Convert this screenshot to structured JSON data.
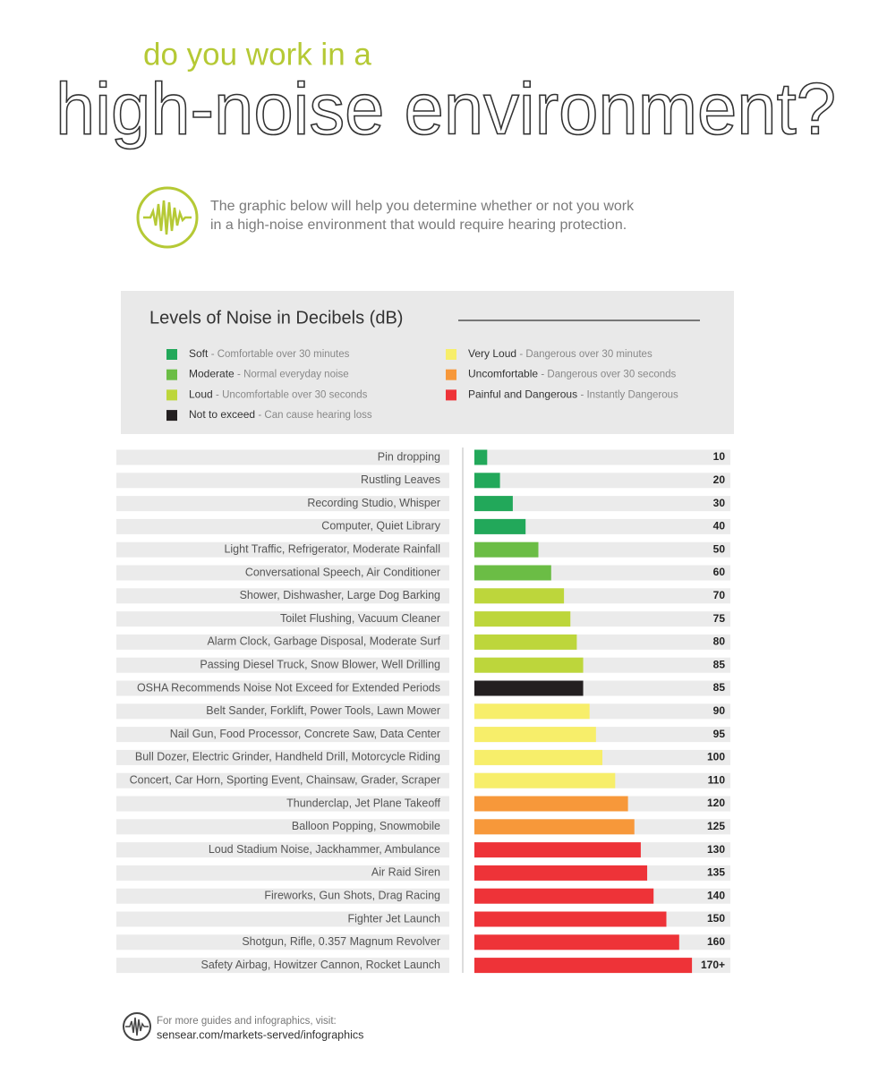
{
  "header": {
    "kicker": "do you work in a",
    "title": "high-noise environment?",
    "intro": [
      "The graphic below will help you determine whether or not you work",
      "in a high-noise environment that would require hearing protection."
    ]
  },
  "chart_data": {
    "type": "hbar",
    "title": "Levels of Noise in Decibels (dB)",
    "legend": [
      {
        "name": "Soft",
        "description": "- Comfortable over 30 minutes",
        "color": "#22a85a"
      },
      {
        "name": "Moderate",
        "description": "- Normal everyday noise",
        "color": "#6bbd45"
      },
      {
        "name": "Loud",
        "description": "- Uncomfortable over 30 seconds",
        "color": "#bdd63b"
      },
      {
        "name": "Not to exceed",
        "description": "- Can cause hearing loss",
        "color": "#231f20"
      },
      {
        "name": "Very Loud",
        "description": "- Dangerous over 30 minutes",
        "color": "#f7ee6a"
      },
      {
        "name": "Uncomfortable",
        "description": "- Dangerous over 30 seconds",
        "color": "#f7983a"
      },
      {
        "name": "Painful and Dangerous",
        "description": "- Instantly Dangerous",
        "color": "#ee3338"
      }
    ],
    "categories": [
      "Pin dropping",
      "Rustling Leaves",
      "Recording Studio, Whisper",
      "Computer, Quiet Library",
      "Light Traffic, Refrigerator, Moderate Rainfall",
      "Conversational Speech, Air Conditioner",
      "Shower, Dishwasher, Large Dog Barking",
      "Toilet Flushing, Vacuum Cleaner",
      "Alarm Clock, Garbage Disposal, Moderate Surf",
      "Passing Diesel Truck, Snow Blower, Well Drilling",
      "OSHA Recommends Noise Not Exceed for Extended Periods",
      "Belt Sander, Forklift, Power Tools, Lawn Mower",
      "Nail Gun, Food Processor, Concrete Saw, Data Center",
      "Bull Dozer, Electric Grinder, Handheld Drill, Motorcycle Riding",
      "Concert, Car Horn, Sporting Event, Chainsaw, Grader, Scraper",
      "Thunderclap, Jet Plane Takeoff",
      "Balloon Popping, Snowmobile",
      "Loud Stadium Noise, Jackhammer, Ambulance",
      "Air Raid Siren",
      "Fireworks, Gun Shots, Drag Racing",
      "Fighter Jet Launch",
      "Shotgun, Rifle, 0.357 Magnum Revolver",
      "Safety Airbag, Howitzer Cannon, Rocket Launch"
    ],
    "values": [
      10,
      20,
      30,
      40,
      50,
      60,
      70,
      75,
      80,
      85,
      85,
      90,
      95,
      100,
      110,
      120,
      125,
      130,
      135,
      140,
      150,
      160,
      170
    ],
    "value_labels": [
      "10",
      "20",
      "30",
      "40",
      "50",
      "60",
      "70",
      "75",
      "80",
      "85",
      "85",
      "90",
      "95",
      "100",
      "110",
      "120",
      "125",
      "130",
      "135",
      "140",
      "150",
      "160",
      "170+"
    ],
    "colors": [
      "#22a85a",
      "#22a85a",
      "#22a85a",
      "#22a85a",
      "#6bbd45",
      "#6bbd45",
      "#bdd63b",
      "#bdd63b",
      "#bdd63b",
      "#bdd63b",
      "#231f20",
      "#f7ee6a",
      "#f7ee6a",
      "#f7ee6a",
      "#f7ee6a",
      "#f7983a",
      "#f7983a",
      "#ee3338",
      "#ee3338",
      "#ee3338",
      "#ee3338",
      "#ee3338",
      "#ee3338"
    ],
    "xlim": [
      0,
      200
    ]
  },
  "footer": {
    "note": "For more guides and infographics, visit:",
    "url": "sensear.com/markets-served/infographics"
  }
}
